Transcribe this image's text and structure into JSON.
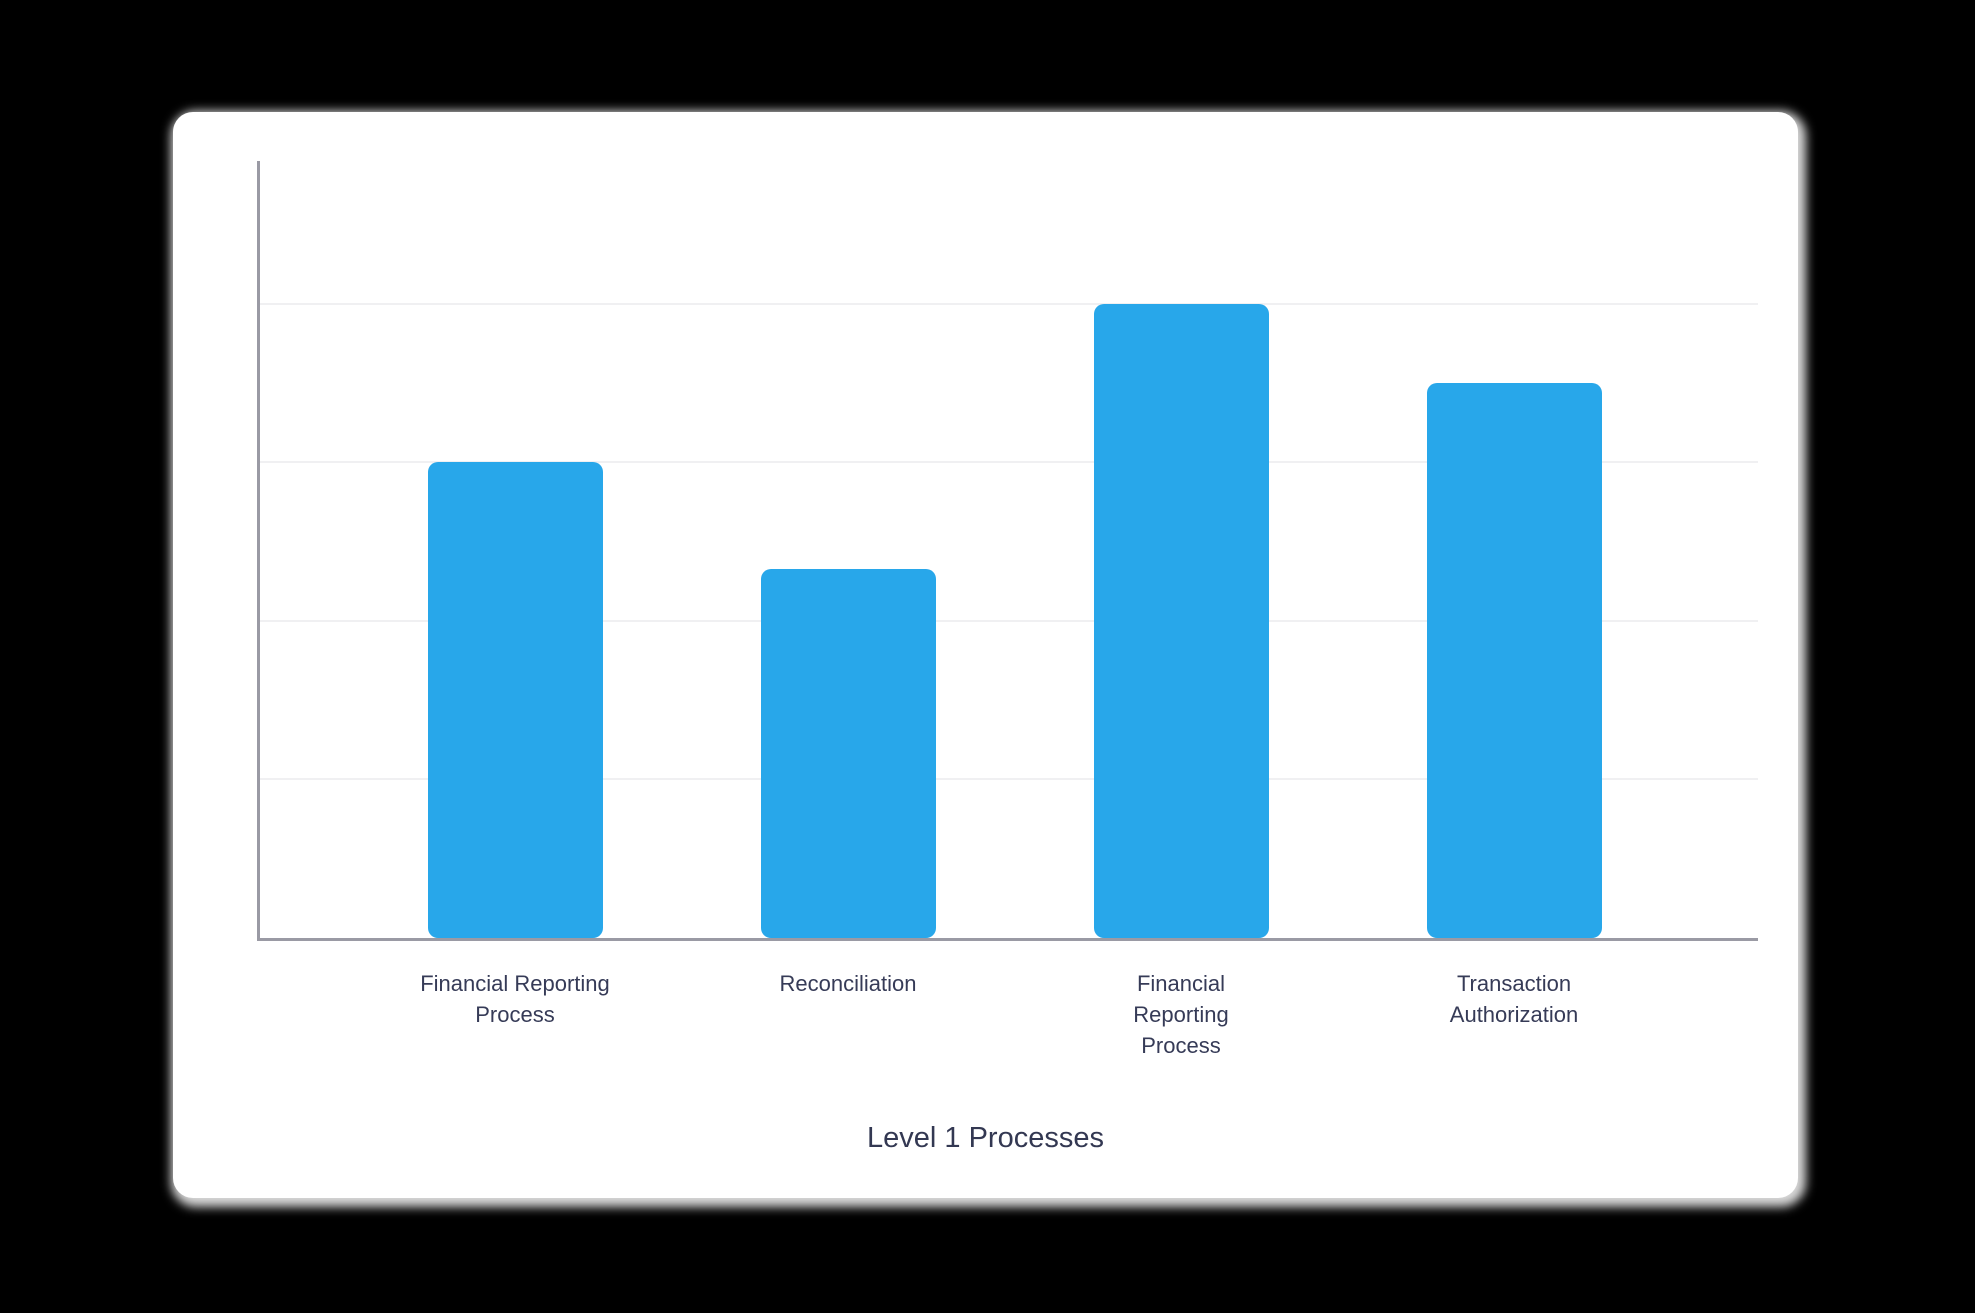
{
  "page": {
    "background_color": "#000000",
    "card_color": "#ffffff"
  },
  "chart_data": {
    "type": "bar",
    "title": "",
    "xlabel": "Level 1 Processes",
    "ylabel": "",
    "categories": [
      "Financial Reporting Process",
      "Reconciliation",
      "Financial Reporting Process",
      "Transaction Authorization"
    ],
    "category_lines": [
      [
        "Financial Reporting",
        "Process"
      ],
      [
        "Reconciliation"
      ],
      [
        "Financial",
        "Reporting",
        "Process"
      ],
      [
        "Transaction",
        "Authorization"
      ]
    ],
    "values": [
      3,
      2.33,
      4,
      3.5
    ],
    "ylim": [
      0,
      4.9
    ],
    "gridline_values": [
      1,
      2,
      3,
      4
    ],
    "grid": true,
    "legend_visible": false,
    "y_tick_labels_visible": false,
    "bar_color": "#28a7ea",
    "axis_color": "#9a9aa4",
    "gridline_color": "#f0f0f2",
    "label_color": "#363b57",
    "title_color": "#333852"
  }
}
